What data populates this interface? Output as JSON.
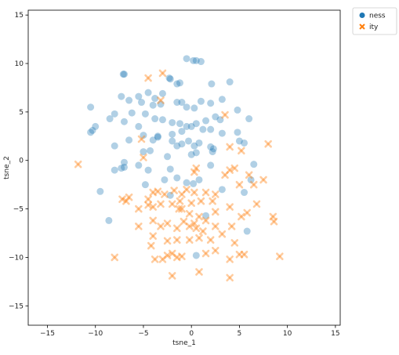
{
  "chart_data": {
    "type": "scatter",
    "xlabel": "tsne_1",
    "ylabel": "tsne_2",
    "xlim": [
      -17,
      15.5
    ],
    "ylim": [
      -17,
      15.5
    ],
    "xticks": [
      -15,
      -10,
      -5,
      0,
      5,
      10,
      15
    ],
    "yticks": [
      -15,
      -10,
      -5,
      0,
      5,
      10,
      15
    ],
    "grid": false,
    "legend_position": "outside-top-right",
    "series": [
      {
        "name": "ness",
        "marker": "circle",
        "color": "#1f77b4",
        "points": [
          [
            -0.5,
            10.5
          ],
          [
            0.2,
            10.3
          ],
          [
            0.5,
            10.3
          ],
          [
            1.0,
            10.2
          ],
          [
            -7.0,
            8.9
          ],
          [
            -7.1,
            8.9
          ],
          [
            -2.3,
            8.5
          ],
          [
            -2.2,
            8.4
          ],
          [
            -1.5,
            7.9
          ],
          [
            -1.2,
            8.0
          ],
          [
            2.1,
            7.9
          ],
          [
            4.0,
            8.1
          ],
          [
            -6.5,
            6.2
          ],
          [
            -7.3,
            6.6
          ],
          [
            -4.5,
            7.0
          ],
          [
            -5.5,
            6.6
          ],
          [
            -3.8,
            6.4
          ],
          [
            -3.0,
            6.9
          ],
          [
            -5.2,
            6.0
          ],
          [
            -4.0,
            5.7
          ],
          [
            -3.2,
            5.8
          ],
          [
            -1.5,
            6.0
          ],
          [
            -1.0,
            6.0
          ],
          [
            -0.5,
            5.5
          ],
          [
            0.3,
            5.4
          ],
          [
            1.0,
            6.1
          ],
          [
            2.0,
            5.9
          ],
          [
            3.2,
            6.3
          ],
          [
            -8.5,
            4.3
          ],
          [
            -8.0,
            4.8
          ],
          [
            -6.2,
            4.9
          ],
          [
            -4.8,
            4.8
          ],
          [
            -3.8,
            4.3
          ],
          [
            -3.0,
            4.2
          ],
          [
            -2.0,
            3.9
          ],
          [
            -1.2,
            3.8
          ],
          [
            -0.5,
            3.5
          ],
          [
            0.5,
            3.8
          ],
          [
            1.5,
            4.1
          ],
          [
            2.5,
            4.5
          ],
          [
            3.0,
            4.2
          ],
          [
            4.8,
            5.2
          ],
          [
            6.0,
            4.3
          ],
          [
            -10.5,
            5.5
          ],
          [
            -10.0,
            3.5
          ],
          [
            -10.3,
            3.1
          ],
          [
            -10.5,
            2.9
          ],
          [
            -7.0,
            4.0
          ],
          [
            -5.5,
            3.5
          ],
          [
            -5.0,
            2.6
          ],
          [
            -3.5,
            2.4
          ],
          [
            -2.0,
            2.7
          ],
          [
            -1.0,
            3.0
          ],
          [
            0.0,
            3.5
          ],
          [
            1.2,
            3.2
          ],
          [
            2.0,
            3.2
          ],
          [
            3.2,
            2.8
          ],
          [
            4.8,
            2.9
          ],
          [
            5.0,
            2.0
          ],
          [
            5.5,
            1.8
          ],
          [
            -8.0,
            1.5
          ],
          [
            -6.5,
            2.1
          ],
          [
            -4.0,
            2.1
          ],
          [
            -3.5,
            2.5
          ],
          [
            -2.0,
            2.0
          ],
          [
            -1.5,
            1.5
          ],
          [
            -1.0,
            1.7
          ],
          [
            -0.3,
            2.0
          ],
          [
            0.3,
            1.5
          ],
          [
            0.8,
            1.8
          ],
          [
            2.0,
            1.4
          ],
          [
            2.3,
            1.2
          ],
          [
            2.2,
            0.9
          ],
          [
            -5.0,
            0.9
          ],
          [
            -4.3,
            1.0
          ],
          [
            -2.5,
            0.4
          ],
          [
            0.0,
            0.6
          ],
          [
            0.5,
            0.8
          ],
          [
            -7.0,
            -0.2
          ],
          [
            -8.0,
            -1.0
          ],
          [
            -7.3,
            -0.8
          ],
          [
            -7.0,
            -0.7
          ],
          [
            -5.5,
            -0.5
          ],
          [
            -4.5,
            -1.0
          ],
          [
            -2.2,
            -0.9
          ],
          [
            -2.8,
            -2.0
          ],
          [
            -1.5,
            -1.8
          ],
          [
            -0.5,
            -2.3
          ],
          [
            0.2,
            -2.4
          ],
          [
            0.8,
            -2.0
          ],
          [
            2.0,
            -0.5
          ],
          [
            3.2,
            -3.0
          ],
          [
            5.5,
            -3.3
          ],
          [
            6.2,
            -2.0
          ],
          [
            6.5,
            -0.4
          ],
          [
            -9.5,
            -3.2
          ],
          [
            -4.8,
            -2.5
          ],
          [
            -2.2,
            -3.6
          ],
          [
            -8.6,
            -6.2
          ],
          [
            1.5,
            -5.7
          ],
          [
            5.8,
            -7.3
          ],
          [
            0.5,
            -9.8
          ]
        ]
      },
      {
        "name": "ity",
        "marker": "x",
        "color": "#ff7f0e",
        "points": [
          [
            -4.5,
            8.5
          ],
          [
            -3.0,
            9.0
          ],
          [
            -3.2,
            6.2
          ],
          [
            3.5,
            4.7
          ],
          [
            -5.2,
            2.2
          ],
          [
            -5.0,
            0.3
          ],
          [
            0.5,
            -0.8
          ],
          [
            0.3,
            -1.2
          ],
          [
            4.0,
            -1.0
          ],
          [
            4.5,
            -0.8
          ],
          [
            4.0,
            1.4
          ],
          [
            5.2,
            1.0
          ],
          [
            8.0,
            1.7
          ],
          [
            -11.8,
            -0.4
          ],
          [
            -7.2,
            -4.0
          ],
          [
            -6.5,
            -3.8
          ],
          [
            -6.8,
            -4.2
          ],
          [
            -4.5,
            -4.0
          ],
          [
            -4.0,
            -3.3
          ],
          [
            -3.5,
            -3.2
          ],
          [
            -2.8,
            -3.5
          ],
          [
            -1.8,
            -3.1
          ],
          [
            -1.0,
            -3.5
          ],
          [
            -0.5,
            -3.0
          ],
          [
            0.3,
            -3.3
          ],
          [
            1.5,
            -3.3
          ],
          [
            2.5,
            -3.5
          ],
          [
            3.5,
            -1.5
          ],
          [
            6.0,
            -1.5
          ],
          [
            7.5,
            -2.0
          ],
          [
            6.5,
            -2.5
          ],
          [
            5.0,
            -2.5
          ],
          [
            2.2,
            -4.2
          ],
          [
            1.0,
            -4.2
          ],
          [
            0.0,
            -4.4
          ],
          [
            -1.2,
            -4.2
          ],
          [
            -2.0,
            -4.5
          ],
          [
            -3.2,
            -4.5
          ],
          [
            -4.0,
            -4.8
          ],
          [
            -4.5,
            -4.6
          ],
          [
            -5.5,
            -5.0
          ],
          [
            -1.3,
            -5.0
          ],
          [
            -0.2,
            -5.5
          ],
          [
            0.8,
            -5.8
          ],
          [
            1.5,
            -6.2
          ],
          [
            2.5,
            -5.3
          ],
          [
            4.0,
            -4.8
          ],
          [
            5.2,
            -5.8
          ],
          [
            5.8,
            -5.4
          ],
          [
            6.8,
            -4.5
          ],
          [
            8.5,
            -5.8
          ],
          [
            8.6,
            -6.3
          ],
          [
            -5.5,
            -6.8
          ],
          [
            -4.0,
            -6.2
          ],
          [
            -3.2,
            -6.8
          ],
          [
            -2.5,
            -6.5
          ],
          [
            -1.5,
            -7.0
          ],
          [
            -0.8,
            -6.3
          ],
          [
            -0.2,
            -6.8
          ],
          [
            0.3,
            -6.5
          ],
          [
            0.5,
            -7.0
          ],
          [
            1.2,
            -7.3
          ],
          [
            2.5,
            -6.8
          ],
          [
            3.2,
            -7.6
          ],
          [
            4.2,
            -6.8
          ],
          [
            -4.0,
            -7.8
          ],
          [
            -2.5,
            -8.3
          ],
          [
            -1.5,
            -8.2
          ],
          [
            -0.2,
            -8.2
          ],
          [
            0.8,
            -8.0
          ],
          [
            2.0,
            -8.2
          ],
          [
            4.5,
            -8.5
          ],
          [
            -3.8,
            -10.2
          ],
          [
            -3.0,
            -10.2
          ],
          [
            -2.5,
            -9.8
          ],
          [
            -2.0,
            -9.6
          ],
          [
            -1.5,
            -10.0
          ],
          [
            -1.0,
            -9.9
          ],
          [
            1.5,
            -9.6
          ],
          [
            2.5,
            -9.3
          ],
          [
            4.0,
            -10.2
          ],
          [
            5.0,
            -9.7
          ],
          [
            5.5,
            -9.7
          ],
          [
            9.2,
            -9.9
          ],
          [
            -8.0,
            -10.0
          ],
          [
            -2.0,
            -11.9
          ],
          [
            0.8,
            -11.5
          ],
          [
            4.0,
            -12.1
          ],
          [
            -4.2,
            -8.8
          ],
          [
            -1.0,
            -5.0
          ]
        ]
      }
    ]
  }
}
